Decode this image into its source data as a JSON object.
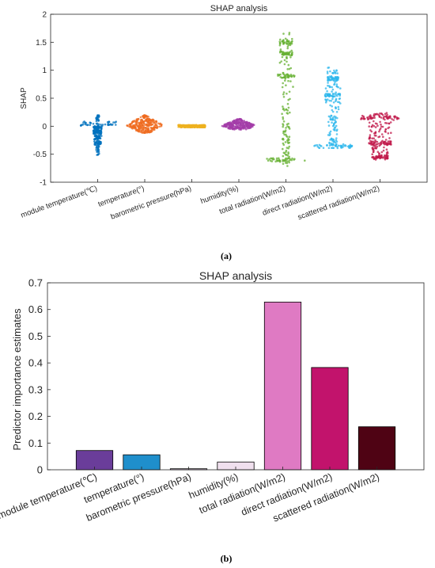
{
  "panel_labels": [
    "(a)",
    "(b)"
  ],
  "chart_data": [
    {
      "type": "scatter",
      "subtype": "swarm",
      "title": "SHAP analysis",
      "xlabel": "",
      "ylabel": "SHAP",
      "ylim": [
        -1,
        2
      ],
      "yticks": [
        "-1",
        "-0.5",
        "0",
        "0.5",
        "1",
        "1.5",
        "2"
      ],
      "grid": false,
      "categories": [
        "module temperature(℃)",
        "temperature(°)",
        "barometric pressure(hPa)",
        "humidity(%)",
        "total radiation(W/m2)",
        "direct radiation(W/m2)",
        "scattered radiation(W/m2)"
      ],
      "series": [
        {
          "category": "module temperature(℃)",
          "color": "#0072bd",
          "min": -0.52,
          "max": 0.2,
          "dense_values": [
            0.05,
            0.0,
            -0.1,
            -0.2,
            -0.3
          ]
        },
        {
          "category": "temperature(°)",
          "color": "#ef6b1f",
          "min": -0.12,
          "max": 0.2,
          "dense_values": [
            -0.05,
            0.0,
            0.05,
            0.1
          ]
        },
        {
          "category": "barometric pressure(hPa)",
          "color": "#edb120",
          "min": -0.02,
          "max": 0.02,
          "dense_values": [
            0.0
          ]
        },
        {
          "category": "humidity(%)",
          "color": "#a33ca8",
          "min": -0.06,
          "max": 0.13,
          "dense_values": [
            -0.02,
            0.0,
            0.05
          ]
        },
        {
          "category": "total radiation(W/m2)",
          "color": "#66b032",
          "min": -0.72,
          "max": 1.67,
          "dense_values": [
            -0.6,
            0.9,
            1.3,
            1.5
          ]
        },
        {
          "category": "direct radiation(W/m2)",
          "color": "#2db7ec",
          "min": -0.4,
          "max": 1.05,
          "dense_values": [
            -0.36,
            0.55,
            0.85
          ]
        },
        {
          "category": "scattered radiation(W/m2)",
          "color": "#c0184a",
          "min": -0.6,
          "max": 0.25,
          "dense_values": [
            0.15,
            -0.3,
            -0.55
          ]
        }
      ]
    },
    {
      "type": "bar",
      "title": "SHAP analysis",
      "xlabel": "",
      "ylabel": "Predictor importance estimates",
      "ylim": [
        0,
        0.7
      ],
      "yticks": [
        "0",
        "0.1",
        "0.2",
        "0.3",
        "0.4",
        "0.5",
        "0.6",
        "0.7"
      ],
      "grid": false,
      "categories": [
        "module temperature(℃)",
        "temperature(°)",
        "barometric pressure(hPa)",
        "humidity(%)",
        "total radiation(W/m2)",
        "direct radiation(W/m2)",
        "scattered radiation(W/m2)"
      ],
      "values": [
        0.072,
        0.056,
        0.004,
        0.029,
        0.628,
        0.383,
        0.161
      ],
      "colors": [
        "#6a3d9a",
        "#1f8fcc",
        "#d9c4dc",
        "#f0e0ee",
        "#df7ac3",
        "#c2136c",
        "#4f0314"
      ]
    }
  ]
}
